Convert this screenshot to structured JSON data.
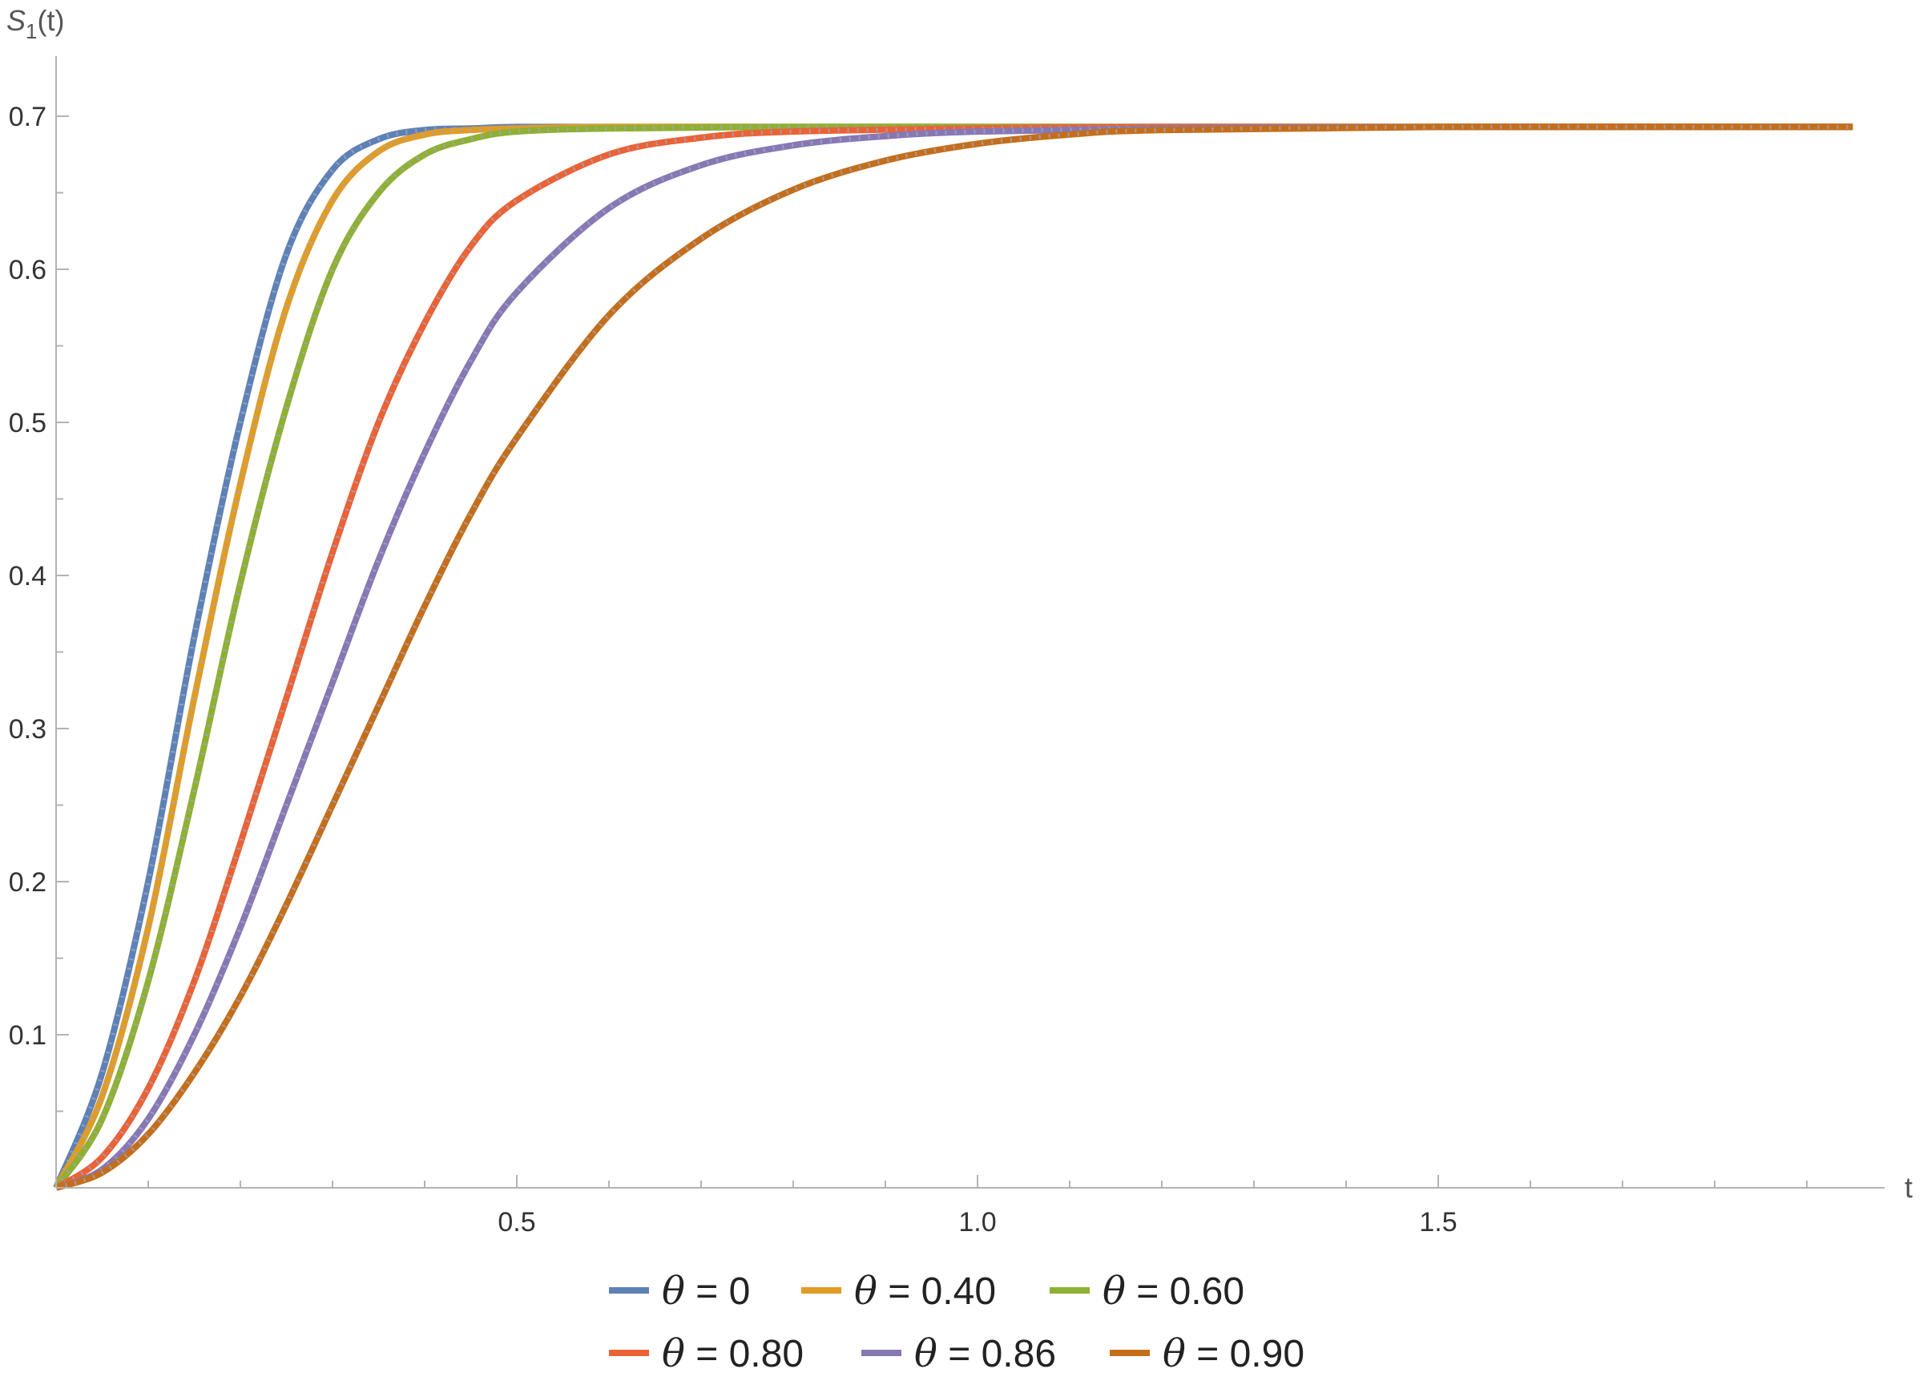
{
  "chart_data": {
    "type": "line",
    "xlabel": "t",
    "ylabel_main": "S",
    "ylabel_sub": "1",
    "ylabel_suffix": "(t)",
    "xlim": [
      0,
      2.0
    ],
    "ylim": [
      0,
      0.7
    ],
    "x_ticks": [
      {
        "value": 0.5,
        "label": "0.5"
      },
      {
        "value": 1.0,
        "label": "1.0"
      },
      {
        "value": 1.5,
        "label": "1.5"
      }
    ],
    "y_ticks": [
      {
        "value": 0.1,
        "label": "0.1"
      },
      {
        "value": 0.2,
        "label": "0.2"
      },
      {
        "value": 0.3,
        "label": "0.3"
      },
      {
        "value": 0.4,
        "label": "0.4"
      },
      {
        "value": 0.5,
        "label": "0.5"
      },
      {
        "value": 0.6,
        "label": "0.6"
      },
      {
        "value": 0.7,
        "label": "0.7"
      }
    ],
    "plateau": 0.693,
    "x_end": 1.95,
    "series": [
      {
        "name": "θ = 0",
        "theta": "θ",
        "value_text": " = 0",
        "color": "#5e81b5",
        "x": [
          0,
          0.05,
          0.1,
          0.15,
          0.2,
          0.25,
          0.3,
          0.35,
          0.4,
          0.45,
          0.5,
          0.6,
          0.8,
          1.0,
          1.5,
          1.95
        ],
        "y": [
          0,
          0.075,
          0.2,
          0.36,
          0.5,
          0.61,
          0.665,
          0.685,
          0.691,
          0.692,
          0.693,
          0.693,
          0.693,
          0.693,
          0.693,
          0.693
        ]
      },
      {
        "name": "θ = 0.40",
        "theta": "θ",
        "value_text": " = 0.40",
        "color": "#e19c24",
        "x": [
          0,
          0.05,
          0.1,
          0.15,
          0.2,
          0.25,
          0.3,
          0.35,
          0.4,
          0.45,
          0.5,
          0.6,
          0.8,
          1.0,
          1.5,
          1.95
        ],
        "y": [
          0,
          0.06,
          0.17,
          0.32,
          0.46,
          0.575,
          0.645,
          0.677,
          0.688,
          0.691,
          0.692,
          0.693,
          0.693,
          0.693,
          0.693,
          0.693
        ]
      },
      {
        "name": "θ = 0.60",
        "theta": "θ",
        "value_text": " = 0.60",
        "color": "#8fb032",
        "x": [
          0,
          0.05,
          0.1,
          0.15,
          0.2,
          0.25,
          0.3,
          0.35,
          0.4,
          0.45,
          0.5,
          0.6,
          0.8,
          1.0,
          1.5,
          1.95
        ],
        "y": [
          0,
          0.045,
          0.135,
          0.26,
          0.395,
          0.51,
          0.6,
          0.65,
          0.675,
          0.685,
          0.69,
          0.692,
          0.693,
          0.693,
          0.693,
          0.693
        ]
      },
      {
        "name": "θ = 0.80",
        "theta": "θ",
        "value_text": " = 0.80",
        "color": "#eb6235",
        "x": [
          0,
          0.05,
          0.1,
          0.15,
          0.2,
          0.25,
          0.3,
          0.35,
          0.4,
          0.45,
          0.5,
          0.6,
          0.7,
          0.8,
          1.0,
          1.2,
          1.5,
          1.95
        ],
        "y": [
          0,
          0.02,
          0.065,
          0.135,
          0.225,
          0.32,
          0.415,
          0.5,
          0.565,
          0.615,
          0.645,
          0.675,
          0.686,
          0.69,
          0.692,
          0.693,
          0.693,
          0.693
        ]
      },
      {
        "name": "θ = 0.86",
        "theta": "θ",
        "value_text": " = 0.86",
        "color": "#8778b3",
        "x": [
          0,
          0.05,
          0.1,
          0.15,
          0.2,
          0.25,
          0.3,
          0.35,
          0.4,
          0.45,
          0.5,
          0.6,
          0.7,
          0.8,
          0.9,
          1.0,
          1.2,
          1.5,
          1.95
        ],
        "y": [
          0,
          0.012,
          0.045,
          0.1,
          0.17,
          0.25,
          0.33,
          0.41,
          0.48,
          0.54,
          0.585,
          0.64,
          0.668,
          0.681,
          0.687,
          0.69,
          0.692,
          0.693,
          0.693
        ]
      },
      {
        "name": "θ = 0.90",
        "theta": "θ",
        "value_text": " = 0.90",
        "color": "#c56e1a",
        "x": [
          0,
          0.05,
          0.1,
          0.15,
          0.2,
          0.25,
          0.3,
          0.35,
          0.4,
          0.45,
          0.5,
          0.6,
          0.7,
          0.8,
          0.9,
          1.0,
          1.1,
          1.2,
          1.5,
          1.95
        ],
        "y": [
          0,
          0.01,
          0.035,
          0.075,
          0.125,
          0.185,
          0.25,
          0.315,
          0.38,
          0.44,
          0.49,
          0.57,
          0.62,
          0.652,
          0.671,
          0.682,
          0.688,
          0.691,
          0.693,
          0.693
        ]
      }
    ]
  }
}
